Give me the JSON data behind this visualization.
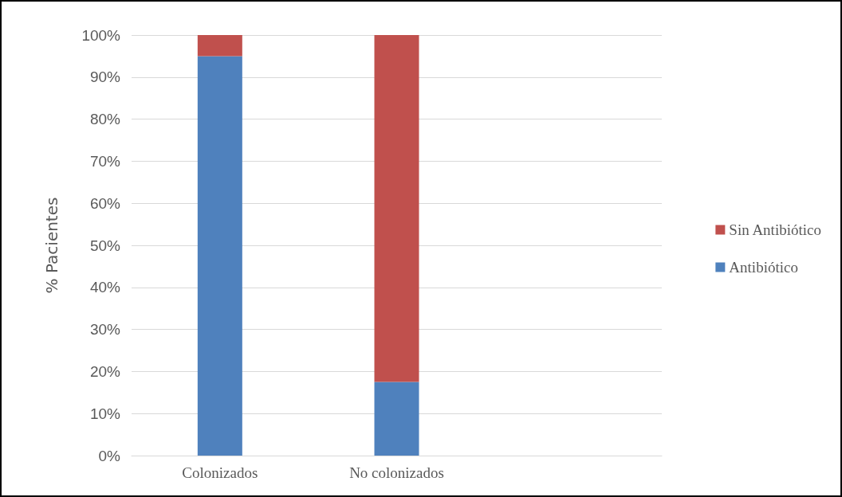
{
  "chart_data": {
    "type": "bar",
    "stacked": true,
    "ylabel": "% Pacientes",
    "categories": [
      "Colonizados",
      "No colonizados",
      null
    ],
    "series": [
      {
        "name": "Antibiótico",
        "color": "#4f81bd",
        "values": [
          95,
          17.5,
          null
        ]
      },
      {
        "name": "Sin Antibiótico",
        "color": "#c0504d",
        "values": [
          5,
          82.5,
          null
        ]
      }
    ],
    "ylim": [
      0,
      100
    ],
    "yticks": [
      {
        "value": 0,
        "label": "0%"
      },
      {
        "value": 10,
        "label": "10%"
      },
      {
        "value": 20,
        "label": "20%"
      },
      {
        "value": 30,
        "label": "30%"
      },
      {
        "value": 40,
        "label": "40%"
      },
      {
        "value": 50,
        "label": "50%"
      },
      {
        "value": 60,
        "label": "60%"
      },
      {
        "value": 70,
        "label": "70%"
      },
      {
        "value": 80,
        "label": "80%"
      },
      {
        "value": 90,
        "label": "90%"
      },
      {
        "value": 100,
        "label": "100%"
      }
    ],
    "grid": true,
    "legend": "right"
  }
}
